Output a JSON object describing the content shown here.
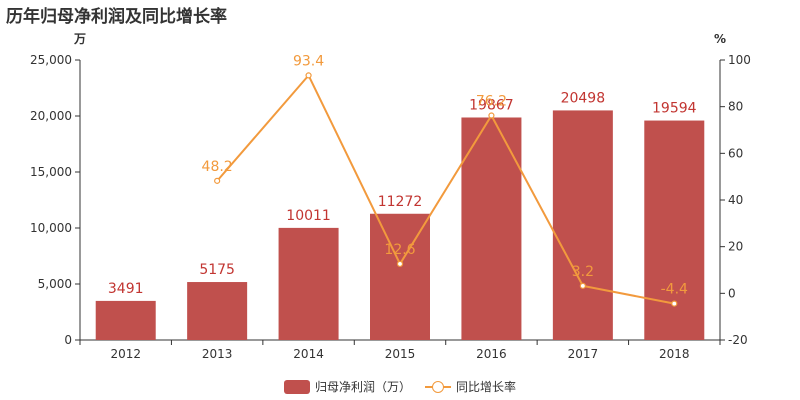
{
  "title": "历年归母净利润及同比增长率",
  "colors": {
    "bar": "#c0504d",
    "bar_label": "#c23531",
    "line": "#f29a3d",
    "axis": "#333333"
  },
  "legend": {
    "bar_label": "归母净利润（万）",
    "line_label": "同比增长率"
  },
  "chart_data": {
    "type": "bar",
    "categories": [
      "2012",
      "2013",
      "2014",
      "2015",
      "2016",
      "2017",
      "2018"
    ],
    "series": [
      {
        "name": "归母净利润（万）",
        "type": "bar",
        "axis": "left",
        "values": [
          3491,
          5175,
          10011,
          11272,
          19867,
          20498,
          19594
        ],
        "labels": [
          "3491",
          "5175",
          "10011",
          "11272",
          "19867",
          "20498",
          "19594"
        ]
      },
      {
        "name": "同比增长率",
        "type": "line",
        "axis": "right",
        "values": [
          null,
          48.2,
          93.4,
          12.6,
          76.2,
          3.2,
          -4.4
        ],
        "labels": [
          "",
          "48.2",
          "93.4",
          "12.6",
          "76.2",
          "3.2",
          "-4.4"
        ]
      }
    ],
    "y_left": {
      "unit": "万",
      "ylim": [
        0,
        25000
      ],
      "ticks": [
        0,
        5000,
        10000,
        15000,
        20000,
        25000
      ],
      "tick_labels": [
        "0",
        "5,000",
        "10,000",
        "15,000",
        "20,000",
        "25,000"
      ]
    },
    "y_right": {
      "unit": "%",
      "ylim": [
        -20,
        100
      ],
      "ticks": [
        -20,
        0,
        20,
        40,
        60,
        80,
        100
      ],
      "tick_labels": [
        "-20",
        "0",
        "20",
        "40",
        "60",
        "80",
        "100"
      ]
    },
    "grid": false,
    "legend_position": "bottom"
  }
}
